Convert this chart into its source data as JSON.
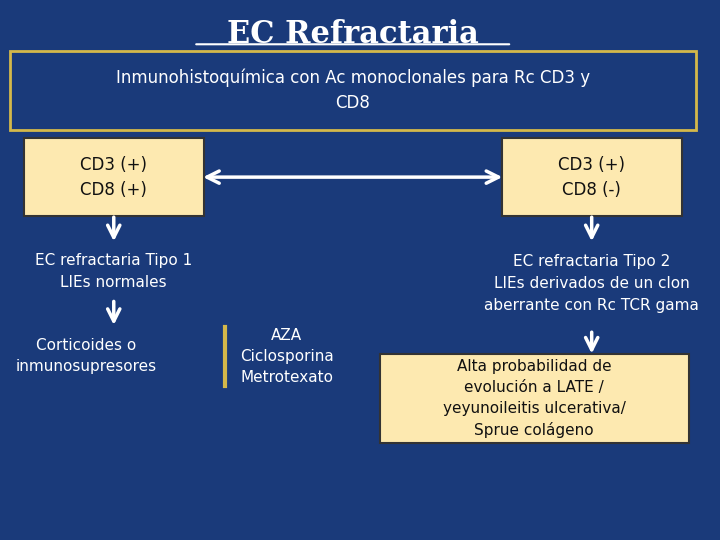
{
  "title": "EC Refractaria",
  "bg_color": "#1a3a7a",
  "title_color": "#ffffff",
  "subtitle_text": "Inmunohistoquímica con Ac monoclonales para Rc CD3 y\nCD8",
  "subtitle_box_edge": "#d4b84a",
  "box_left_text": "CD3 (+)\nCD8 (+)",
  "box_right_text": "CD3 (+)\nCD8 (-)",
  "box_fill": "#fde9b0",
  "box_edge": "#333333",
  "text_color_dark": "#111111",
  "left_sub1": "EC refractaria Tipo 1\nLIEs normales",
  "left_sub2": "Corticoides o\ninmunosupresores",
  "left_sub3": "AZA\nCiclosporina\nMetrotexato",
  "right_sub1": "EC refractaria Tipo 2\nLIEs derivados de un clon\naberrante con Rc TCR gama",
  "right_box_text": "Alta probabilidad de\nevolución a LATE /\nyeyunoileitis ulcerativa/\nSprue colágeno",
  "gold_line_color": "#d4b84a",
  "arrow_color": "#ffffff"
}
